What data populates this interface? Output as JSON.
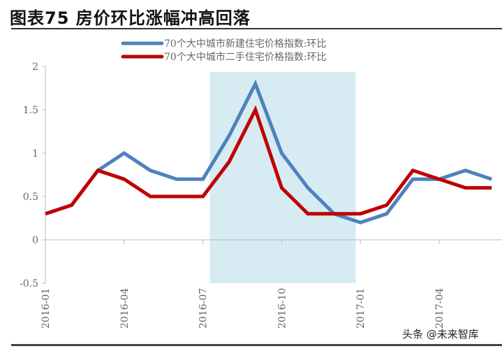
{
  "title": "图表75 房价环比涨幅冲高回落",
  "watermark": "头条 @未来智库",
  "chart_data": {
    "type": "line",
    "x": [
      "2016-01",
      "2016-02",
      "2016-03",
      "2016-04",
      "2016-05",
      "2016-06",
      "2016-07",
      "2016-08",
      "2016-09",
      "2016-10",
      "2016-11",
      "2016-12",
      "2017-01",
      "2017-02",
      "2017-03",
      "2017-04",
      "2017-05",
      "2017-06"
    ],
    "x_tick_labels": [
      "2016-01",
      "2016-04",
      "2016-07",
      "2016-10",
      "2017-01",
      "2017-04"
    ],
    "y_tick_labels": [
      "2",
      "1.5",
      "1",
      "0.5",
      "0",
      "-0.5"
    ],
    "ylim": [
      -0.5,
      2
    ],
    "grid": false,
    "legend_position": "top-center",
    "shaded_range": [
      "2016-07",
      "2016-12"
    ],
    "shade_color": "#d6ebf2",
    "series": [
      {
        "name": "70个大中城市新建住宅价格指数:环比",
        "color": "#4f81bd",
        "values": [
          0.3,
          0.4,
          0.8,
          1.0,
          0.8,
          0.7,
          0.7,
          1.2,
          1.8,
          1.0,
          0.6,
          0.3,
          0.2,
          0.3,
          0.7,
          0.7,
          0.8,
          0.7
        ]
      },
      {
        "name": "70个大中城市二手住宅价格指数:环比",
        "color": "#c00000",
        "values": [
          0.3,
          0.4,
          0.8,
          0.7,
          0.5,
          0.5,
          0.5,
          0.9,
          1.5,
          0.6,
          0.3,
          0.3,
          0.3,
          0.4,
          0.8,
          0.7,
          0.6,
          0.6
        ]
      }
    ]
  }
}
